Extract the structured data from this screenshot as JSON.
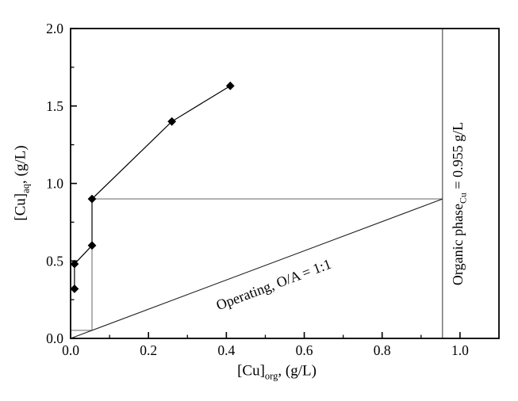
{
  "figure": {
    "background_color": "#ffffff",
    "ink_color": "#000000",
    "construction_line_color": "#666666",
    "reference_line_color": "#444444"
  },
  "chart_data": {
    "type": "scatter",
    "subtype": "mccabe-thiele-extraction-isotherm",
    "title": "",
    "grid": "off",
    "x_axis": {
      "label_pre": "[Cu]",
      "label_sub": "org",
      "label_post": ", (g/L)",
      "range": [
        0,
        1.1
      ],
      "major_ticks": [
        0.0,
        0.2,
        0.4,
        0.6,
        0.8,
        1.0
      ],
      "minor_ticks": [
        0.1,
        0.3,
        0.5,
        0.7,
        0.9
      ],
      "tick_labels": [
        "0.0",
        "0.2",
        "0.4",
        "0.6",
        "0.8",
        "1.0"
      ]
    },
    "y_axis": {
      "label_pre": "[Cu]",
      "label_sub": "aq",
      "label_post": ", (g/L)",
      "range": [
        0,
        2.0
      ],
      "major_ticks": [
        0.0,
        0.5,
        1.0,
        1.5,
        2.0
      ],
      "minor_ticks": [
        0.25,
        0.75,
        1.25,
        1.75
      ],
      "tick_labels": [
        "0.0",
        "0.5",
        "1.0",
        "1.5",
        "2.0"
      ]
    },
    "series": [
      {
        "name": "extraction-isotherm",
        "marker": "diamond",
        "points": [
          [
            0.01,
            0.32
          ],
          [
            0.01,
            0.48
          ],
          [
            0.055,
            0.6
          ],
          [
            0.055,
            0.9
          ],
          [
            0.26,
            1.4
          ],
          [
            0.41,
            1.63
          ]
        ]
      },
      {
        "name": "operating-line",
        "marker": "none",
        "points": [
          [
            0,
            0
          ],
          [
            0.955,
            0.9
          ]
        ],
        "label": "Operating, O/A = 1:1"
      }
    ],
    "construction_lines": [
      {
        "name": "stage-step-horizontal-upper",
        "points": [
          [
            0.055,
            0.9
          ],
          [
            0.955,
            0.9
          ]
        ]
      },
      {
        "name": "stage-step-vertical",
        "points": [
          [
            0.055,
            0.052
          ],
          [
            0.055,
            0.9
          ]
        ]
      },
      {
        "name": "stage-step-horizontal-lower",
        "points": [
          [
            0.0,
            0.052
          ],
          [
            0.055,
            0.052
          ]
        ]
      }
    ],
    "reference_line": {
      "name": "organic-phase-loading",
      "x": 0.955,
      "label_pre": "Organic phase",
      "label_sub": "Cu",
      "label_post": " = 0.955 g/L"
    }
  }
}
